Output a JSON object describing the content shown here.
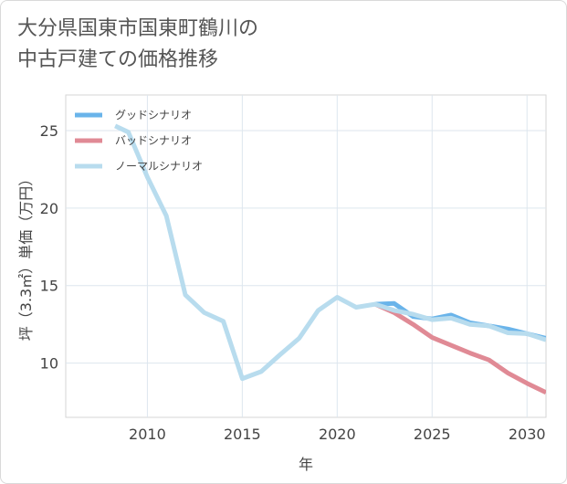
{
  "title_lines": [
    "大分県国東市国東町鶴川の",
    "中古戸建ての価格推移"
  ],
  "chart_data": {
    "type": "line",
    "title": "大分県国東市国東町鶴川の中古戸建ての価格推移",
    "xlabel": "年",
    "ylabel": "坪（3.3㎡）単価（万円）",
    "xlim": [
      2005.7,
      2031.0
    ],
    "ylim": [
      6.5,
      27.3
    ],
    "xticks": [
      2010,
      2015,
      2020,
      2025,
      2030
    ],
    "yticks": [
      10,
      15,
      20,
      25
    ],
    "grid": true,
    "legend_position": "top-left",
    "series": [
      {
        "name": "グッドシナリオ",
        "color": "#6ab4ea",
        "x": [
          2022,
          2023,
          2024,
          2025,
          2026,
          2027,
          2028,
          2029,
          2030,
          2031
        ],
        "y": [
          13.8,
          13.85,
          13.0,
          12.85,
          13.1,
          12.6,
          12.4,
          12.2,
          11.9,
          11.6
        ]
      },
      {
        "name": "バッドシナリオ",
        "color": "#e08a95",
        "x": [
          2022,
          2023,
          2024,
          2025,
          2026,
          2027,
          2028,
          2029,
          2030,
          2031
        ],
        "y": [
          13.8,
          13.25,
          12.5,
          11.65,
          11.15,
          10.65,
          10.2,
          9.35,
          8.7,
          8.1
        ]
      },
      {
        "name": "ノーマルシナリオ",
        "color": "#b8dcee",
        "x": [
          2008.3,
          2009,
          2010,
          2011,
          2012,
          2013,
          2014,
          2015,
          2016,
          2017,
          2018,
          2019,
          2020,
          2021,
          2022,
          2023,
          2024,
          2025,
          2026,
          2027,
          2028,
          2029,
          2030,
          2031
        ],
        "y": [
          25.3,
          24.9,
          22.0,
          19.5,
          14.4,
          13.25,
          12.7,
          9.0,
          9.45,
          10.55,
          11.6,
          13.4,
          14.25,
          13.6,
          13.8,
          13.4,
          13.15,
          12.8,
          12.9,
          12.5,
          12.4,
          11.95,
          11.9,
          11.5
        ]
      }
    ]
  }
}
